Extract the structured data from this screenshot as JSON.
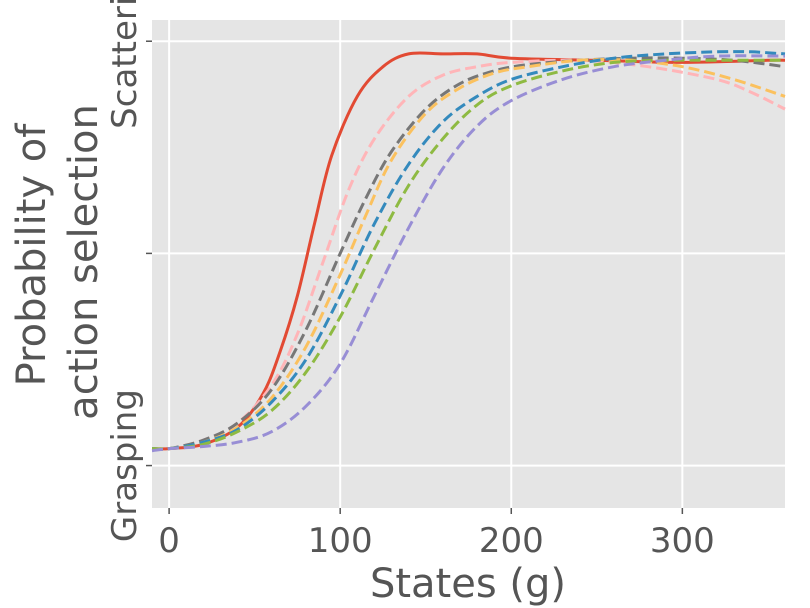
{
  "chart_data": {
    "type": "line",
    "xlabel": "States (g)",
    "ylabel_lines": [
      "Probability of",
      "action selection"
    ],
    "xlim": [
      -10,
      360
    ],
    "ylim": [
      -0.1,
      1.05
    ],
    "x_ticks": [
      0,
      100,
      200,
      300
    ],
    "x_tick_labels": [
      "0",
      "100",
      "200",
      "300"
    ],
    "y_ticks": [
      0,
      0.5,
      1
    ],
    "y_tick_labels": [
      "Grasping",
      "",
      "Scattering"
    ],
    "grid": true,
    "background": "#E5E5E5",
    "series": [
      {
        "color": "#E24A33",
        "dash": "solid",
        "x": [
          -10,
          0,
          20,
          40,
          55,
          65,
          75,
          85,
          95,
          110,
          125,
          140,
          160,
          180,
          200,
          250,
          300,
          350,
          360
        ],
        "y": [
          0.04,
          0.04,
          0.05,
          0.09,
          0.17,
          0.27,
          0.4,
          0.57,
          0.73,
          0.87,
          0.94,
          0.97,
          0.97,
          0.97,
          0.96,
          0.955,
          0.95,
          0.955,
          0.955
        ]
      },
      {
        "color": "#FFB5B8",
        "dash": "dashed",
        "x": [
          -10,
          0,
          20,
          40,
          60,
          75,
          90,
          105,
          120,
          140,
          160,
          180,
          200,
          240,
          280,
          320,
          340,
          360
        ],
        "y": [
          0.04,
          0.04,
          0.06,
          0.1,
          0.19,
          0.31,
          0.48,
          0.65,
          0.77,
          0.87,
          0.92,
          0.94,
          0.95,
          0.955,
          0.94,
          0.91,
          0.88,
          0.84
        ]
      },
      {
        "color": "#777777",
        "dash": "dashed",
        "x": [
          -10,
          0,
          20,
          40,
          60,
          80,
          100,
          115,
          130,
          150,
          170,
          190,
          210,
          240,
          270,
          300,
          330,
          360
        ],
        "y": [
          0.04,
          0.04,
          0.06,
          0.1,
          0.18,
          0.32,
          0.5,
          0.63,
          0.74,
          0.84,
          0.9,
          0.93,
          0.945,
          0.955,
          0.96,
          0.96,
          0.955,
          0.94
        ]
      },
      {
        "color": "#FBC15E",
        "dash": "dashed",
        "x": [
          -10,
          0,
          20,
          40,
          60,
          80,
          100,
          115,
          130,
          150,
          170,
          190,
          210,
          240,
          270,
          300,
          330,
          360
        ],
        "y": [
          0.04,
          0.04,
          0.055,
          0.09,
          0.16,
          0.28,
          0.45,
          0.59,
          0.72,
          0.83,
          0.89,
          0.925,
          0.94,
          0.955,
          0.955,
          0.94,
          0.91,
          0.87
        ]
      },
      {
        "color": "#348ABD",
        "dash": "dashed",
        "x": [
          -10,
          0,
          20,
          40,
          60,
          80,
          100,
          120,
          140,
          160,
          180,
          200,
          230,
          260,
          290,
          320,
          340,
          360
        ],
        "y": [
          0.04,
          0.04,
          0.055,
          0.085,
          0.15,
          0.25,
          0.4,
          0.57,
          0.71,
          0.81,
          0.87,
          0.91,
          0.94,
          0.96,
          0.97,
          0.975,
          0.975,
          0.97
        ]
      },
      {
        "color": "#8EBA42",
        "dash": "dashed",
        "x": [
          -10,
          0,
          20,
          40,
          60,
          80,
          100,
          120,
          140,
          160,
          180,
          200,
          230,
          260,
          290,
          320,
          360
        ],
        "y": [
          0.04,
          0.04,
          0.05,
          0.08,
          0.13,
          0.22,
          0.35,
          0.51,
          0.66,
          0.77,
          0.85,
          0.895,
          0.93,
          0.95,
          0.955,
          0.955,
          0.955
        ]
      },
      {
        "color": "#988ED5",
        "dash": "dashed",
        "x": [
          -10,
          0,
          20,
          40,
          60,
          80,
          100,
          120,
          140,
          160,
          180,
          200,
          230,
          260,
          290,
          320,
          360
        ],
        "y": [
          0.035,
          0.04,
          0.045,
          0.055,
          0.08,
          0.14,
          0.24,
          0.4,
          0.56,
          0.7,
          0.8,
          0.86,
          0.91,
          0.94,
          0.955,
          0.965,
          0.965
        ]
      }
    ]
  }
}
